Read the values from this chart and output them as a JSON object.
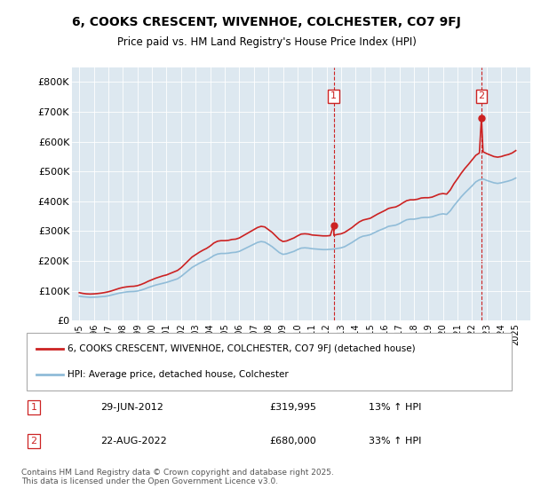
{
  "title": "6, COOKS CRESCENT, WIVENHOE, COLCHESTER, CO7 9FJ",
  "subtitle": "Price paid vs. HM Land Registry's House Price Index (HPI)",
  "background_color": "#dde8f0",
  "hpi_color": "#90bcd8",
  "price_color": "#cc2222",
  "marker1_x": 2012.49,
  "marker1_y": 319995,
  "marker1_label": "1",
  "marker1_date": "29-JUN-2012",
  "marker1_price": "£319,995",
  "marker1_hpi": "13% ↑ HPI",
  "marker2_x": 2022.64,
  "marker2_y": 680000,
  "marker2_label": "2",
  "marker2_date": "22-AUG-2022",
  "marker2_price": "£680,000",
  "marker2_hpi": "33% ↑ HPI",
  "ylim_min": 0,
  "ylim_max": 850000,
  "xlim_min": 1994.5,
  "xlim_max": 2026.0,
  "ylabel_ticks": [
    0,
    100000,
    200000,
    300000,
    400000,
    500000,
    600000,
    700000,
    800000
  ],
  "ylabel_labels": [
    "£0",
    "£100K",
    "£200K",
    "£300K",
    "£400K",
    "£500K",
    "£600K",
    "£700K",
    "£800K"
  ],
  "xticks": [
    1995,
    1996,
    1997,
    1998,
    1999,
    2000,
    2001,
    2002,
    2003,
    2004,
    2005,
    2006,
    2007,
    2008,
    2009,
    2010,
    2011,
    2012,
    2013,
    2014,
    2015,
    2016,
    2017,
    2018,
    2019,
    2020,
    2021,
    2022,
    2023,
    2024,
    2025
  ],
  "legend_line1": "6, COOKS CRESCENT, WIVENHOE, COLCHESTER, CO7 9FJ (detached house)",
  "legend_line2": "HPI: Average price, detached house, Colchester",
  "footer": "Contains HM Land Registry data © Crown copyright and database right 2025.\nThis data is licensed under the Open Government Licence v3.0.",
  "hpi_data": [
    [
      1995.0,
      82000
    ],
    [
      1995.25,
      80000
    ],
    [
      1995.5,
      79000
    ],
    [
      1995.75,
      78000
    ],
    [
      1996.0,
      78500
    ],
    [
      1996.25,
      79000
    ],
    [
      1996.5,
      80000
    ],
    [
      1996.75,
      81000
    ],
    [
      1997.0,
      83000
    ],
    [
      1997.25,
      86000
    ],
    [
      1997.5,
      89000
    ],
    [
      1997.75,
      92000
    ],
    [
      1998.0,
      94000
    ],
    [
      1998.25,
      96000
    ],
    [
      1998.5,
      97000
    ],
    [
      1998.75,
      97500
    ],
    [
      1999.0,
      99000
    ],
    [
      1999.25,
      102000
    ],
    [
      1999.5,
      106000
    ],
    [
      1999.75,
      111000
    ],
    [
      2000.0,
      115000
    ],
    [
      2000.25,
      119000
    ],
    [
      2000.5,
      122000
    ],
    [
      2000.75,
      125000
    ],
    [
      2001.0,
      128000
    ],
    [
      2001.25,
      132000
    ],
    [
      2001.5,
      136000
    ],
    [
      2001.75,
      140000
    ],
    [
      2002.0,
      148000
    ],
    [
      2002.25,
      158000
    ],
    [
      2002.5,
      168000
    ],
    [
      2002.75,
      178000
    ],
    [
      2003.0,
      185000
    ],
    [
      2003.25,
      192000
    ],
    [
      2003.5,
      198000
    ],
    [
      2003.75,
      203000
    ],
    [
      2004.0,
      210000
    ],
    [
      2004.25,
      218000
    ],
    [
      2004.5,
      223000
    ],
    [
      2004.75,
      225000
    ],
    [
      2005.0,
      225000
    ],
    [
      2005.25,
      226000
    ],
    [
      2005.5,
      228000
    ],
    [
      2005.75,
      229000
    ],
    [
      2006.0,
      232000
    ],
    [
      2006.25,
      238000
    ],
    [
      2006.5,
      244000
    ],
    [
      2006.75,
      250000
    ],
    [
      2007.0,
      256000
    ],
    [
      2007.25,
      262000
    ],
    [
      2007.5,
      265000
    ],
    [
      2007.75,
      263000
    ],
    [
      2008.0,
      256000
    ],
    [
      2008.25,
      248000
    ],
    [
      2008.5,
      238000
    ],
    [
      2008.75,
      228000
    ],
    [
      2009.0,
      222000
    ],
    [
      2009.25,
      224000
    ],
    [
      2009.5,
      228000
    ],
    [
      2009.75,
      232000
    ],
    [
      2010.0,
      238000
    ],
    [
      2010.25,
      243000
    ],
    [
      2010.5,
      244000
    ],
    [
      2010.75,
      243000
    ],
    [
      2011.0,
      241000
    ],
    [
      2011.25,
      240000
    ],
    [
      2011.5,
      239000
    ],
    [
      2011.75,
      238000
    ],
    [
      2012.0,
      238000
    ],
    [
      2012.25,
      239000
    ],
    [
      2012.5,
      240000
    ],
    [
      2012.75,
      242000
    ],
    [
      2013.0,
      244000
    ],
    [
      2013.25,
      248000
    ],
    [
      2013.5,
      255000
    ],
    [
      2013.75,
      262000
    ],
    [
      2014.0,
      270000
    ],
    [
      2014.25,
      278000
    ],
    [
      2014.5,
      283000
    ],
    [
      2014.75,
      285000
    ],
    [
      2015.0,
      288000
    ],
    [
      2015.25,
      294000
    ],
    [
      2015.5,
      300000
    ],
    [
      2015.75,
      305000
    ],
    [
      2016.0,
      310000
    ],
    [
      2016.25,
      316000
    ],
    [
      2016.5,
      318000
    ],
    [
      2016.75,
      320000
    ],
    [
      2017.0,
      325000
    ],
    [
      2017.25,
      332000
    ],
    [
      2017.5,
      338000
    ],
    [
      2017.75,
      340000
    ],
    [
      2018.0,
      340000
    ],
    [
      2018.25,
      342000
    ],
    [
      2018.5,
      345000
    ],
    [
      2018.75,
      346000
    ],
    [
      2019.0,
      346000
    ],
    [
      2019.25,
      348000
    ],
    [
      2019.5,
      352000
    ],
    [
      2019.75,
      356000
    ],
    [
      2020.0,
      358000
    ],
    [
      2020.25,
      356000
    ],
    [
      2020.5,
      368000
    ],
    [
      2020.75,
      385000
    ],
    [
      2021.0,
      400000
    ],
    [
      2021.25,
      415000
    ],
    [
      2021.5,
      428000
    ],
    [
      2021.75,
      440000
    ],
    [
      2022.0,
      452000
    ],
    [
      2022.25,
      465000
    ],
    [
      2022.5,
      472000
    ],
    [
      2022.75,
      475000
    ],
    [
      2023.0,
      470000
    ],
    [
      2023.25,
      466000
    ],
    [
      2023.5,
      462000
    ],
    [
      2023.75,
      460000
    ],
    [
      2024.0,
      462000
    ],
    [
      2024.25,
      465000
    ],
    [
      2024.5,
      468000
    ],
    [
      2024.75,
      472000
    ],
    [
      2025.0,
      478000
    ]
  ],
  "price_data": [
    [
      1995.0,
      93500
    ],
    [
      1995.25,
      91000
    ],
    [
      1995.5,
      89500
    ],
    [
      1995.75,
      89000
    ],
    [
      1996.0,
      89500
    ],
    [
      1996.25,
      90500
    ],
    [
      1996.5,
      92000
    ],
    [
      1996.75,
      94000
    ],
    [
      1997.0,
      96500
    ],
    [
      1997.25,
      100000
    ],
    [
      1997.5,
      104000
    ],
    [
      1997.75,
      108000
    ],
    [
      1998.0,
      111000
    ],
    [
      1998.25,
      113000
    ],
    [
      1998.5,
      114500
    ],
    [
      1998.75,
      115000
    ],
    [
      1999.0,
      117000
    ],
    [
      1999.25,
      121000
    ],
    [
      1999.5,
      126000
    ],
    [
      1999.75,
      132000
    ],
    [
      2000.0,
      137000
    ],
    [
      2000.25,
      142000
    ],
    [
      2000.5,
      146000
    ],
    [
      2000.75,
      150000
    ],
    [
      2001.0,
      153000
    ],
    [
      2001.25,
      158000
    ],
    [
      2001.5,
      163000
    ],
    [
      2001.75,
      168000
    ],
    [
      2002.0,
      177000
    ],
    [
      2002.25,
      189000
    ],
    [
      2002.5,
      201000
    ],
    [
      2002.75,
      213000
    ],
    [
      2003.0,
      221000
    ],
    [
      2003.25,
      229000
    ],
    [
      2003.5,
      236000
    ],
    [
      2003.75,
      242000
    ],
    [
      2004.0,
      250000
    ],
    [
      2004.25,
      260000
    ],
    [
      2004.5,
      266000
    ],
    [
      2004.75,
      268000
    ],
    [
      2005.0,
      268000
    ],
    [
      2005.25,
      269000
    ],
    [
      2005.5,
      272000
    ],
    [
      2005.75,
      273000
    ],
    [
      2006.0,
      277000
    ],
    [
      2006.25,
      284000
    ],
    [
      2006.5,
      291000
    ],
    [
      2006.75,
      298000
    ],
    [
      2007.0,
      305000
    ],
    [
      2007.25,
      312000
    ],
    [
      2007.5,
      316000
    ],
    [
      2007.75,
      314000
    ],
    [
      2008.0,
      305000
    ],
    [
      2008.25,
      296000
    ],
    [
      2008.5,
      284000
    ],
    [
      2008.75,
      272000
    ],
    [
      2009.0,
      265000
    ],
    [
      2009.25,
      267000
    ],
    [
      2009.5,
      272000
    ],
    [
      2009.75,
      277000
    ],
    [
      2010.0,
      284000
    ],
    [
      2010.25,
      290000
    ],
    [
      2010.5,
      291000
    ],
    [
      2010.75,
      290000
    ],
    [
      2011.0,
      287000
    ],
    [
      2011.25,
      286000
    ],
    [
      2011.5,
      285000
    ],
    [
      2011.75,
      284000
    ],
    [
      2012.0,
      284000
    ],
    [
      2012.25,
      285000
    ],
    [
      2012.49,
      319995
    ],
    [
      2012.5,
      286000
    ],
    [
      2012.75,
      289000
    ],
    [
      2013.0,
      291000
    ],
    [
      2013.25,
      296000
    ],
    [
      2013.5,
      304000
    ],
    [
      2013.75,
      312000
    ],
    [
      2014.0,
      322000
    ],
    [
      2014.25,
      331000
    ],
    [
      2014.5,
      337000
    ],
    [
      2014.75,
      340000
    ],
    [
      2015.0,
      343000
    ],
    [
      2015.25,
      350000
    ],
    [
      2015.5,
      357000
    ],
    [
      2015.75,
      363000
    ],
    [
      2016.0,
      369000
    ],
    [
      2016.25,
      376000
    ],
    [
      2016.5,
      379000
    ],
    [
      2016.75,
      381000
    ],
    [
      2017.0,
      387000
    ],
    [
      2017.25,
      395000
    ],
    [
      2017.5,
      402000
    ],
    [
      2017.75,
      405000
    ],
    [
      2018.0,
      405000
    ],
    [
      2018.25,
      407000
    ],
    [
      2018.5,
      411000
    ],
    [
      2018.75,
      412000
    ],
    [
      2019.0,
      412000
    ],
    [
      2019.25,
      414000
    ],
    [
      2019.5,
      419000
    ],
    [
      2019.75,
      424000
    ],
    [
      2020.0,
      426000
    ],
    [
      2020.25,
      424000
    ],
    [
      2020.5,
      438000
    ],
    [
      2020.75,
      459000
    ],
    [
      2021.0,
      476000
    ],
    [
      2021.25,
      494000
    ],
    [
      2021.5,
      510000
    ],
    [
      2021.75,
      524000
    ],
    [
      2022.0,
      539000
    ],
    [
      2022.25,
      554000
    ],
    [
      2022.5,
      562000
    ],
    [
      2022.64,
      680000
    ],
    [
      2022.75,
      566000
    ],
    [
      2023.0,
      560000
    ],
    [
      2023.25,
      555000
    ],
    [
      2023.5,
      550000
    ],
    [
      2023.75,
      548000
    ],
    [
      2024.0,
      550000
    ],
    [
      2024.25,
      554000
    ],
    [
      2024.5,
      557000
    ],
    [
      2024.75,
      562000
    ],
    [
      2025.0,
      570000
    ]
  ]
}
